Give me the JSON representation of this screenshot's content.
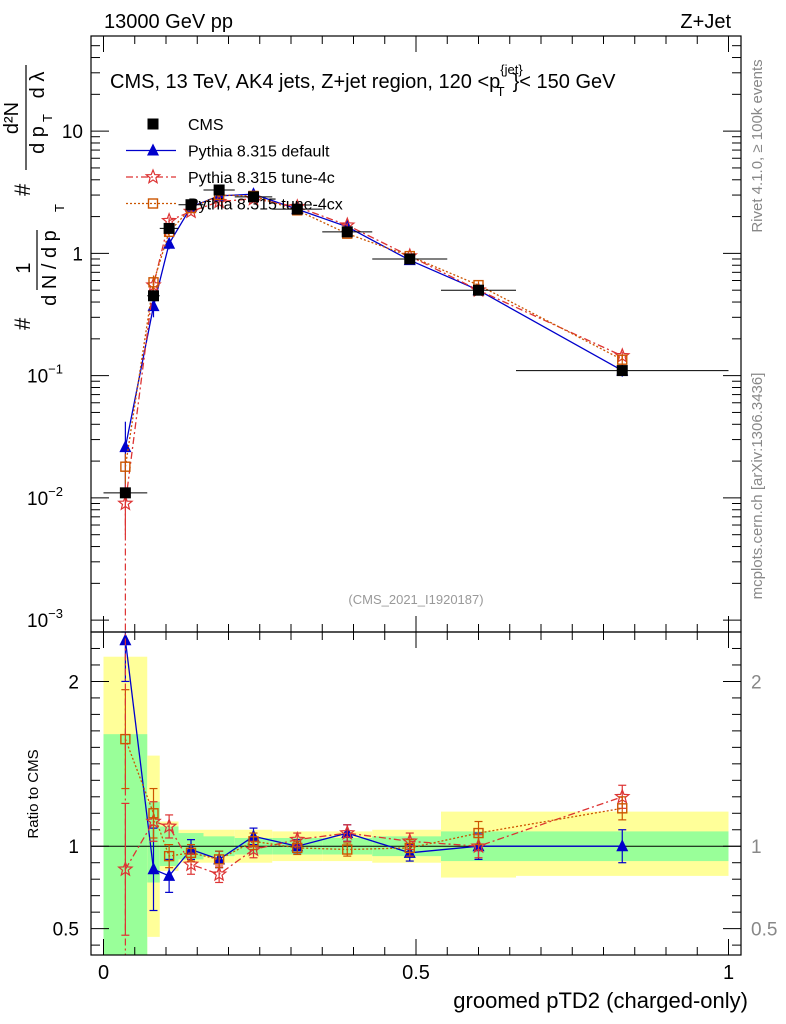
{
  "header": {
    "left": "13000 GeV pp",
    "right": "Z+Jet"
  },
  "plot_title": "CMS, 13 TeV, AK4 jets, Z+jet region, 120 <p",
  "plot_title_sup": "{jet}",
  "plot_title_sub": "T",
  "plot_title_end": "}< 150 GeV",
  "analysis_tag": "(CMS_2021_I1920187)",
  "side_text": {
    "rivet": "Rivet 4.1.0, ≥ 100k events",
    "source": "mcplots.cern.ch [arXiv:1306.3436]"
  },
  "ylabel_main": {
    "one": "1",
    "frac_bottom_a": "d N / d p",
    "sub_t": "T",
    "hash": "#",
    "num_d2N": "d²N",
    "den_dp": "d p",
    "den_dlambda": "d λ"
  },
  "ylabel_ratio": "Ratio to CMS",
  "xlabel": "groomed pTD2 (charged-only)",
  "colors": {
    "data": "#000000",
    "default": "#0000cc",
    "tune4c": "#dd3333",
    "tune4cx": "#cc5500",
    "band_inner": "#99ff99",
    "band_outer": "#ffff99"
  },
  "chart_data": [
    {
      "type": "scatter",
      "panel": "main",
      "yscale": "log",
      "ylim": [
        0.0008,
        60
      ],
      "xlim": [
        -0.02,
        1.02
      ],
      "y_ticks": [
        {
          "value": 0.001,
          "base": "10",
          "exp": "−3"
        },
        {
          "value": 0.01,
          "base": "10",
          "exp": "−2"
        },
        {
          "value": 0.1,
          "base": "10",
          "exp": "−1"
        },
        {
          "value": 1,
          "base": "1",
          "exp": ""
        },
        {
          "value": 10,
          "base": "10",
          "exp": ""
        }
      ],
      "x": [
        0.035,
        0.08,
        0.105,
        0.14,
        0.185,
        0.24,
        0.31,
        0.39,
        0.49,
        0.6,
        0.83
      ],
      "xerr": [
        0.035,
        0.01,
        0.015,
        0.02,
        0.025,
        0.03,
        0.04,
        0.04,
        0.06,
        0.06,
        0.17
      ],
      "series": [
        {
          "name": "CMS",
          "key": "data",
          "marker": "square",
          "values": [
            0.011,
            0.45,
            1.6,
            2.5,
            3.3,
            2.9,
            2.3,
            1.5,
            0.9,
            0.5,
            0.11
          ]
        },
        {
          "name": "Pythia 8.315 default",
          "key": "default",
          "marker": "triangle",
          "values": [
            0.026,
            0.37,
            1.2,
            2.4,
            2.95,
            3.05,
            2.3,
            1.65,
            0.88,
            0.5,
            0.11
          ],
          "err": [
            0.016,
            0.07,
            0.12,
            0.15,
            0.15,
            0.15,
            0.1,
            0.08,
            0.05,
            0.04,
            0.012
          ]
        },
        {
          "name": "Pythia 8.315 tune-4c",
          "key": "tune4c",
          "marker": "star",
          "values": [
            0.009,
            0.55,
            1.85,
            2.2,
            2.65,
            2.8,
            2.4,
            1.7,
            0.95,
            0.5,
            0.145
          ],
          "err": [
            0.004,
            0.08,
            0.12,
            0.12,
            0.12,
            0.12,
            0.1,
            0.08,
            0.05,
            0.04,
            0.012
          ]
        },
        {
          "name": "Pythia 8.315 tune-4cx",
          "key": "tune4cx",
          "marker": "open-square",
          "values": [
            0.018,
            0.58,
            1.5,
            2.35,
            3.0,
            2.95,
            2.25,
            1.45,
            0.95,
            0.55,
            0.135
          ],
          "err": [
            0.005,
            0.08,
            0.12,
            0.12,
            0.12,
            0.12,
            0.1,
            0.07,
            0.05,
            0.04,
            0.012
          ]
        }
      ]
    },
    {
      "type": "scatter",
      "panel": "ratio",
      "ylabel": "Ratio to CMS",
      "ylim": [
        0.34,
        2.3
      ],
      "xlim": [
        -0.02,
        1.02
      ],
      "y_ticks": [
        0.5,
        1,
        2
      ],
      "x_ticks": [
        "0",
        "0.5",
        "1"
      ],
      "x_tick_values": [
        0,
        0.5,
        1
      ],
      "bands": [
        {
          "x0": 0.0,
          "x1": 0.07,
          "inner": [
            0.34,
            1.68
          ],
          "outer": [
            0.34,
            2.15
          ]
        },
        {
          "x0": 0.07,
          "x1": 0.09,
          "inner": [
            0.78,
            1.27
          ],
          "outer": [
            0.45,
            1.55
          ]
        },
        {
          "x0": 0.09,
          "x1": 0.12,
          "inner": [
            0.88,
            1.12
          ],
          "outer": [
            0.85,
            1.15
          ]
        },
        {
          "x0": 0.12,
          "x1": 0.16,
          "inner": [
            0.92,
            1.08
          ],
          "outer": [
            0.9,
            1.1
          ]
        },
        {
          "x0": 0.16,
          "x1": 0.21,
          "inner": [
            0.94,
            1.06
          ],
          "outer": [
            0.9,
            1.1
          ]
        },
        {
          "x0": 0.21,
          "x1": 0.27,
          "inner": [
            0.95,
            1.05
          ],
          "outer": [
            0.9,
            1.1
          ]
        },
        {
          "x0": 0.27,
          "x1": 0.35,
          "inner": [
            0.95,
            1.05
          ],
          "outer": [
            0.91,
            1.09
          ]
        },
        {
          "x0": 0.35,
          "x1": 0.43,
          "inner": [
            0.95,
            1.05
          ],
          "outer": [
            0.91,
            1.09
          ]
        },
        {
          "x0": 0.43,
          "x1": 0.54,
          "inner": [
            0.94,
            1.06
          ],
          "outer": [
            0.9,
            1.1
          ]
        },
        {
          "x0": 0.54,
          "x1": 0.66,
          "inner": [
            0.91,
            1.09
          ],
          "outer": [
            0.81,
            1.21
          ]
        },
        {
          "x0": 0.66,
          "x1": 1.0,
          "inner": [
            0.91,
            1.09
          ],
          "outer": [
            0.82,
            1.21
          ]
        }
      ],
      "x": [
        0.035,
        0.08,
        0.105,
        0.14,
        0.185,
        0.24,
        0.31,
        0.39,
        0.49,
        0.6,
        0.83
      ],
      "series": [
        {
          "name": "Pythia 8.315 default",
          "key": "default",
          "marker": "triangle",
          "values": [
            2.25,
            0.86,
            0.82,
            0.98,
            0.92,
            1.06,
            1.0,
            1.08,
            0.96,
            1.0,
            1.0
          ],
          "err": [
            0.25,
            0.25,
            0.1,
            0.06,
            0.05,
            0.05,
            0.04,
            0.05,
            0.05,
            0.08,
            0.1
          ]
        },
        {
          "name": "Pythia 8.315 tune-4c",
          "key": "tune4c",
          "marker": "star",
          "values": [
            0.86,
            1.15,
            1.12,
            0.89,
            0.83,
            0.98,
            1.04,
            1.08,
            1.03,
            1.0,
            1.3
          ],
          "err": [
            0.4,
            0.12,
            0.07,
            0.06,
            0.05,
            0.05,
            0.04,
            0.05,
            0.05,
            0.07,
            0.07
          ]
        },
        {
          "name": "Pythia 8.315 tune-4cx",
          "key": "tune4cx",
          "marker": "open-square",
          "values": [
            1.65,
            1.2,
            0.94,
            0.96,
            0.92,
            1.03,
            0.99,
            0.98,
            0.99,
            1.08,
            1.23
          ],
          "err": [
            0.3,
            0.15,
            0.07,
            0.05,
            0.05,
            0.05,
            0.04,
            0.04,
            0.05,
            0.07,
            0.07
          ]
        }
      ]
    }
  ]
}
